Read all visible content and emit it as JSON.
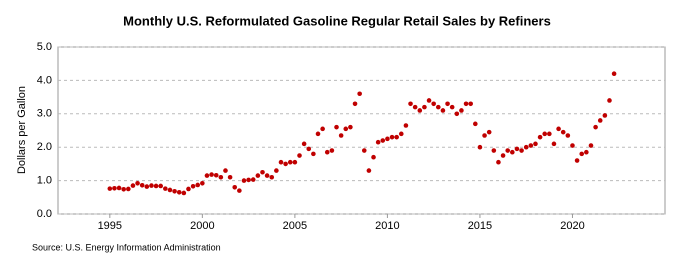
{
  "chart_data": {
    "type": "scatter",
    "title": "Monthly U.S. Reformulated Gasoline Regular Retail Sales by Refiners",
    "y_label": "Dollars per Gallon",
    "source": "Source: U.S. Energy Information Administration",
    "color": "#c00000",
    "grid": true,
    "xlim": [
      1992.2,
      2025
    ],
    "xticks": [
      1995,
      2000,
      2005,
      2010,
      2015,
      2020
    ],
    "ylim": [
      0,
      5
    ],
    "yticks": [
      {
        "value": 0,
        "label": "0.0"
      },
      {
        "value": 1,
        "label": "1.0"
      },
      {
        "value": 2,
        "label": "2.0"
      },
      {
        "value": 3,
        "label": "3.0"
      },
      {
        "value": 4,
        "label": "4.0"
      },
      {
        "value": 5,
        "label": "5.0"
      }
    ],
    "x": [
      1995,
      1995.25,
      1995.5,
      1995.75,
      1996,
      1996.25,
      1996.5,
      1996.75,
      1997,
      1997.25,
      1997.5,
      1997.75,
      1998,
      1998.25,
      1998.5,
      1998.75,
      1999,
      1999.25,
      1999.5,
      1999.75,
      2000,
      2000.25,
      2000.5,
      2000.75,
      2001,
      2001.25,
      2001.5,
      2001.75,
      2002,
      2002.25,
      2002.5,
      2002.75,
      2003,
      2003.25,
      2003.5,
      2003.75,
      2004,
      2004.25,
      2004.5,
      2004.75,
      2005,
      2005.25,
      2005.5,
      2005.75,
      2006,
      2006.25,
      2006.5,
      2006.75,
      2007,
      2007.25,
      2007.5,
      2007.75,
      2008,
      2008.25,
      2008.5,
      2008.75,
      2009,
      2009.25,
      2009.5,
      2009.75,
      2010,
      2010.25,
      2010.5,
      2010.75,
      2011,
      2011.25,
      2011.5,
      2011.75,
      2012,
      2012.25,
      2012.5,
      2012.75,
      2013,
      2013.25,
      2013.5,
      2013.75,
      2014,
      2014.25,
      2014.5,
      2014.75,
      2015,
      2015.25,
      2015.5,
      2015.75,
      2016,
      2016.25,
      2016.5,
      2016.75,
      2017,
      2017.25,
      2017.5,
      2017.75,
      2018,
      2018.25,
      2018.5,
      2018.75,
      2019,
      2019.25,
      2019.5,
      2019.75,
      2020,
      2020.25,
      2020.5,
      2020.75,
      2021,
      2021.25,
      2021.5,
      2021.75,
      2022,
      2022.25
    ],
    "values": [
      0.76,
      0.77,
      0.78,
      0.74,
      0.75,
      0.85,
      0.92,
      0.86,
      0.82,
      0.85,
      0.84,
      0.84,
      0.76,
      0.72,
      0.68,
      0.65,
      0.63,
      0.75,
      0.83,
      0.87,
      0.92,
      1.15,
      1.18,
      1.16,
      1.1,
      1.3,
      1.1,
      0.8,
      0.7,
      1.0,
      1.02,
      1.03,
      1.15,
      1.25,
      1.15,
      1.1,
      1.3,
      1.55,
      1.5,
      1.55,
      1.55,
      1.75,
      2.1,
      1.95,
      1.8,
      2.4,
      2.55,
      1.85,
      1.9,
      2.6,
      2.35,
      2.55,
      2.6,
      3.3,
      3.6,
      1.9,
      1.3,
      1.7,
      2.15,
      2.2,
      2.25,
      2.3,
      2.3,
      2.4,
      2.65,
      3.3,
      3.2,
      3.1,
      3.2,
      3.4,
      3.3,
      3.2,
      3.1,
      3.3,
      3.2,
      3.0,
      3.1,
      3.3,
      3.3,
      2.7,
      2.0,
      2.35,
      2.45,
      1.9,
      1.55,
      1.75,
      1.9,
      1.85,
      1.95,
      1.9,
      2.0,
      2.05,
      2.1,
      2.3,
      2.4,
      2.4,
      2.1,
      2.55,
      2.45,
      2.35,
      2.05,
      1.6,
      1.8,
      1.85,
      2.05,
      2.6,
      2.8,
      2.95,
      3.4,
      4.2
    ]
  }
}
